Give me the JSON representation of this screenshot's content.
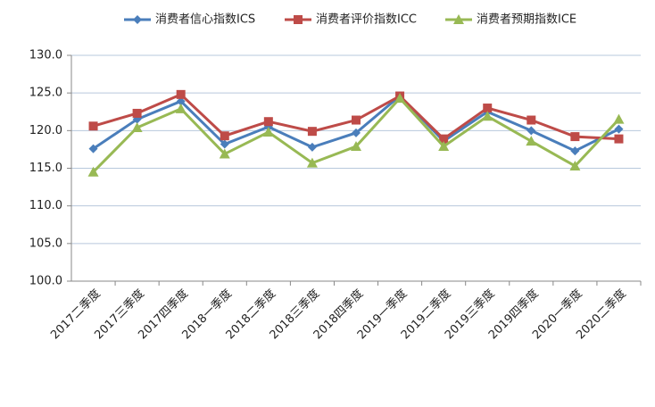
{
  "chart_data": {
    "type": "line",
    "categories": [
      "2017二季度",
      "2017三季度",
      "2017四季度",
      "2018一季度",
      "2018二季度",
      "2018三季度",
      "2018四季度",
      "2019一季度",
      "2019二季度",
      "2019三季度",
      "2019四季度",
      "2020一季度",
      "2020二季度"
    ],
    "series": [
      {
        "name": "消费者信心指数ICS",
        "color": "#4a7ebb",
        "marker": "diamond",
        "values": [
          117.6,
          121.5,
          123.9,
          118.2,
          120.5,
          117.8,
          119.7,
          124.6,
          118.6,
          122.5,
          120.0,
          117.3,
          120.2
        ]
      },
      {
        "name": "消费者评价指数ICC",
        "color": "#be4b48",
        "marker": "square",
        "values": [
          120.6,
          122.3,
          124.8,
          119.3,
          121.2,
          119.9,
          121.4,
          124.6,
          118.9,
          123.0,
          121.4,
          119.2,
          118.9
        ]
      },
      {
        "name": "消费者预期指数ICE",
        "color": "#98b954",
        "marker": "triangle",
        "values": [
          114.5,
          120.4,
          122.9,
          116.9,
          119.8,
          115.7,
          117.9,
          124.3,
          117.9,
          121.9,
          118.6,
          115.3,
          121.5
        ]
      }
    ],
    "ylim": [
      100,
      130
    ],
    "yticks": [
      {
        "value": 100,
        "label": "100.0"
      },
      {
        "value": 105,
        "label": "105.0"
      },
      {
        "value": 110,
        "label": "110.0"
      },
      {
        "value": 115,
        "label": "115.0"
      },
      {
        "value": 120,
        "label": "120.0"
      },
      {
        "value": 125,
        "label": "125.0"
      },
      {
        "value": 130,
        "label": "130.0"
      }
    ],
    "grid": true,
    "legend": "top"
  }
}
